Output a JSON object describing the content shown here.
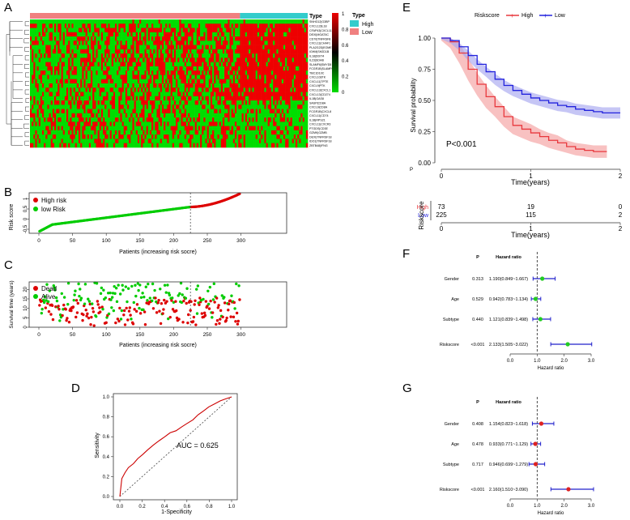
{
  "panels": {
    "A": "A",
    "B": "B",
    "C": "C",
    "D": "D",
    "E": "E",
    "F": "F",
    "G": "G"
  },
  "heatmap": {
    "type_label": "Type",
    "legend_title": "Type",
    "legend_items": [
      {
        "label": "High",
        "color": "#33CCCC"
      },
      {
        "label": "Low",
        "color": "#F08080"
      }
    ],
    "scale_ticks": [
      "1",
      "0.8",
      "0.6",
      "0.4",
      "0.2",
      "0"
    ],
    "colors": {
      "high": "#EE0000",
      "low": "#00DD00",
      "mid": "#000000",
      "type_high": "#33CCCC",
      "type_low": "#F08080"
    },
    "genes": [
      "SNHG12|G3BP",
      "CXCL12|IL18",
      "CFAP43|CXCL11",
      "DEXI|MGAT4C",
      "CD70|TNFRSF8",
      "CXCL11|CHAF1",
      "PLA2G2D|EOMES",
      "IGHM|SH2D1B",
      "IL18|DDIT4",
      "IL23|SDHB",
      "SLAMF6|SMYD5",
      "FCGR1B|SLAMF6",
      "TBC1D10C",
      "CXCL10|ITK",
      "CXCL11|TPTE",
      "CXCL9|PTK",
      "CXCL13|CXCL1",
      "CXCL13|CD274",
      "IL1B|GAS8",
      "SASP|CD8A",
      "CXCL9|CD8A",
      "FCGR1B|CXCL8",
      "CXCL11|CD74",
      "IL1B|RPS21",
      "CXCL11|CXCR3",
      "PTGDS|CD3E",
      "GZMK|GZMB",
      "DEXI|TNFRSF18",
      "IDO1|TNFRSF18",
      "ZBTB48|IFNG"
    ],
    "n_low": 225,
    "n_high": 73
  },
  "risk_score": {
    "ylabel": "Risk score",
    "xlabel": "Patients (increasing risk socre)",
    "legend": [
      {
        "label": "High risk",
        "color": "#DD0000"
      },
      {
        "label": "low Risk",
        "color": "#00CC00"
      }
    ],
    "xticks": [
      0,
      50,
      100,
      150,
      200,
      250,
      300
    ],
    "yticks": [
      -0.5,
      0,
      0.5,
      1
    ],
    "cutoff": 225
  },
  "survival_status": {
    "ylabel": "Survival time (years)",
    "xlabel": "Patients (increasing risk socre)",
    "legend": [
      {
        "label": "Dead",
        "color": "#DD0000"
      },
      {
        "label": "Alive",
        "color": "#00CC00"
      }
    ],
    "xticks": [
      0,
      50,
      100,
      150,
      200,
      250,
      300
    ],
    "yticks": [
      0,
      5,
      10,
      15,
      20
    ]
  },
  "roc": {
    "xlabel": "1-Specificity",
    "ylabel": "Sensitivity",
    "auc_text": "AUC = 0.625",
    "ticks": [
      "0.0",
      "0.2",
      "0.4",
      "0.6",
      "0.8",
      "1.0"
    ]
  },
  "km": {
    "legend_title": "Riskscore",
    "legend": [
      {
        "label": "High",
        "color": "#E8383D"
      },
      {
        "label": "Low",
        "color": "#2222DD"
      }
    ],
    "ylabel": "Survival probability",
    "xlabel": "Time(years)",
    "pvalue": "P<0.001",
    "yticks": [
      "0.00",
      "0.25",
      "0.50",
      "0.75",
      "1.00"
    ],
    "xticks": [
      "0",
      "1",
      "2"
    ],
    "risk_table": {
      "title": "Riskscore",
      "rows": [
        {
          "label": "High",
          "color": "#E8383D",
          "values": [
            "73",
            "19",
            "0"
          ]
        },
        {
          "label": "Low",
          "color": "#2222DD",
          "values": [
            "225",
            "115",
            "2"
          ]
        }
      ],
      "xlabel": "Time(years)",
      "xticks": [
        "0",
        "1",
        "2"
      ]
    }
  },
  "forest_F": {
    "header_p": "P",
    "header_hr": "Hazard ratio",
    "xlabel": "Hazard ratio",
    "xticks": [
      "0.0",
      "1.0",
      "2.0",
      "3.0"
    ],
    "point_color": "#22CC22",
    "rows": [
      {
        "name": "Gender",
        "p": "0.313",
        "hr": "1.190(0.849~1.667)"
      },
      {
        "name": "Age",
        "p": "0.529",
        "hr": "0.942(0.783~1.134)"
      },
      {
        "name": "Subtype",
        "p": "0.440",
        "hr": "1.121(0.839~1.498)"
      },
      {
        "name": "Riskscore",
        "p": "<0.001",
        "hr": "2.133(1.505~3.022)"
      }
    ]
  },
  "forest_G": {
    "header_p": "P",
    "header_hr": "Hazard ratio",
    "xlabel": "Hazard ratio",
    "xticks": [
      "0.0",
      "1.0",
      "2.0",
      "3.0"
    ],
    "point_color": "#DD2222",
    "rows": [
      {
        "name": "Gender",
        "p": "0.408",
        "hr": "1.154(0.823~1.618)"
      },
      {
        "name": "Age",
        "p": "0.478",
        "hr": "0.933(0.771~1.129)"
      },
      {
        "name": "Subtype",
        "p": "0.717",
        "hr": "0.946(0.699~1.279)"
      },
      {
        "name": "Riskscore",
        "p": "<0.001",
        "hr": "2.160(1.510~3.090)"
      }
    ]
  },
  "chart_data": [
    {
      "type": "heatmap",
      "title": "",
      "rows": 30,
      "columns": 298,
      "categories": [
        "Low",
        "High"
      ],
      "counts": [
        225,
        73
      ]
    },
    {
      "type": "scatter",
      "title": "",
      "xlabel": "Patients (increasing risk socre)",
      "ylabel": "Risk score",
      "xlim": [
        0,
        300
      ],
      "ylim": [
        -0.7,
        1.3
      ],
      "series": [
        {
          "name": "High risk",
          "n": 73
        },
        {
          "name": "low Risk",
          "n": 225
        }
      ],
      "range": [
        -0.62,
        1.25
      ],
      "cutoff_index": 225
    },
    {
      "type": "scatter",
      "title": "",
      "xlabel": "Patients (increasing risk socre)",
      "ylabel": "Survival time (years)",
      "xlim": [
        0,
        300
      ],
      "ylim": [
        0,
        24
      ],
      "series": [
        {
          "name": "Dead"
        },
        {
          "name": "Alive"
        }
      ]
    },
    {
      "type": "line",
      "title": "",
      "xlabel": "1-Specificity",
      "ylabel": "Sensitivity",
      "xlim": [
        0,
        1
      ],
      "ylim": [
        0,
        1
      ],
      "auc": 0.625,
      "x": [
        0,
        0.02,
        0.05,
        0.08,
        0.12,
        0.16,
        0.2,
        0.25,
        0.3,
        0.35,
        0.4,
        0.45,
        0.5,
        0.55,
        0.6,
        0.65,
        0.7,
        0.75,
        0.8,
        0.85,
        0.9,
        0.95,
        1.0
      ],
      "y": [
        0,
        0.18,
        0.24,
        0.29,
        0.33,
        0.38,
        0.42,
        0.47,
        0.52,
        0.56,
        0.6,
        0.64,
        0.66,
        0.7,
        0.73,
        0.77,
        0.82,
        0.86,
        0.9,
        0.93,
        0.96,
        0.98,
        1.0
      ]
    },
    {
      "type": "line",
      "title": "",
      "xlabel": "Time(years)",
      "ylabel": "Survival probability",
      "xlim": [
        0,
        2
      ],
      "ylim": [
        0,
        1
      ],
      "series": [
        {
          "name": "High",
          "x": [
            0,
            0.1,
            0.2,
            0.3,
            0.4,
            0.5,
            0.6,
            0.7,
            0.8,
            0.9,
            1.0,
            1.1,
            1.2,
            1.3,
            1.4,
            1.5,
            1.6,
            1.7,
            1.8,
            1.85
          ],
          "y": [
            1,
            0.97,
            0.88,
            0.75,
            0.63,
            0.53,
            0.45,
            0.37,
            0.3,
            0.27,
            0.24,
            0.21,
            0.18,
            0.16,
            0.13,
            0.11,
            0.1,
            0.09,
            0.09,
            0.09
          ]
        },
        {
          "name": "Low",
          "x": [
            0,
            0.1,
            0.2,
            0.3,
            0.4,
            0.5,
            0.6,
            0.7,
            0.8,
            0.9,
            1.0,
            1.1,
            1.2,
            1.3,
            1.4,
            1.5,
            1.6,
            1.7,
            1.8,
            1.9,
            2.0
          ],
          "y": [
            1,
            0.98,
            0.93,
            0.86,
            0.79,
            0.73,
            0.67,
            0.62,
            0.58,
            0.55,
            0.52,
            0.5,
            0.48,
            0.46,
            0.45,
            0.43,
            0.42,
            0.41,
            0.4,
            0.4,
            0.4
          ]
        }
      ],
      "pvalue": "P<0.001"
    },
    {
      "type": "forest",
      "title": "",
      "xlabel": "Hazard ratio",
      "xlim": [
        0,
        3.5
      ],
      "categories": [
        "Gender",
        "Age",
        "Subtype",
        "Riskscore"
      ],
      "hr": [
        1.19,
        0.942,
        1.121,
        2.133
      ],
      "lower": [
        0.849,
        0.783,
        0.839,
        1.505
      ],
      "upper": [
        1.667,
        1.134,
        1.498,
        3.022
      ],
      "p": [
        "0.313",
        "0.529",
        "0.440",
        "<0.001"
      ]
    },
    {
      "type": "forest",
      "title": "",
      "xlabel": "Hazard ratio",
      "xlim": [
        0,
        3.5
      ],
      "categories": [
        "Gender",
        "Age",
        "Subtype",
        "Riskscore"
      ],
      "hr": [
        1.154,
        0.933,
        0.946,
        2.16
      ],
      "lower": [
        0.823,
        0.771,
        0.699,
        1.51
      ],
      "upper": [
        1.618,
        1.129,
        1.279,
        3.09
      ],
      "p": [
        "0.408",
        "0.478",
        "0.717",
        "<0.001"
      ]
    }
  ]
}
